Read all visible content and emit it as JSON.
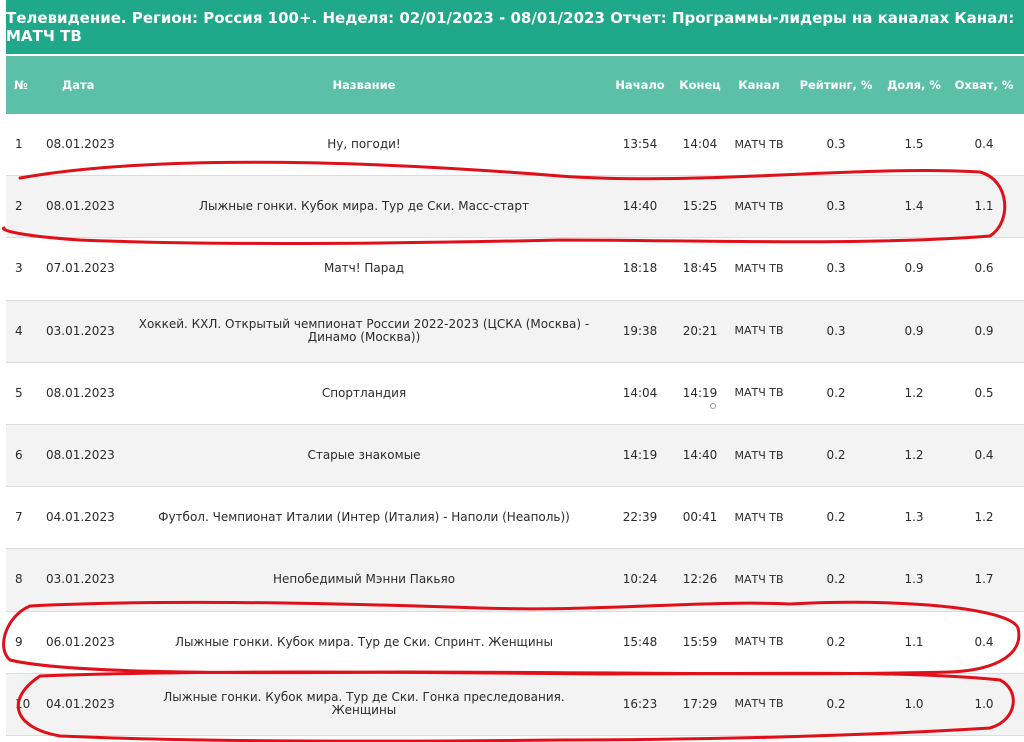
{
  "title": "Телевидение. Регион: Россия 100+. Неделя: 02/01/2023 - 08/01/2023 Отчет: Программы-лидеры на каналах Канал: МАТЧ ТВ",
  "columns": {
    "num": "№",
    "date": "Дата",
    "name": "Название",
    "start": "Начало",
    "end": "Конец",
    "channel": "Канал",
    "rating": "Рейтинг, %",
    "share": "Доля, %",
    "reach": "Охват, %"
  },
  "rows": [
    {
      "num": "1",
      "date": "08.01.2023",
      "name": "Ну, погоди!",
      "start": "13:54",
      "end": "14:04",
      "channel": "МАТЧ ТВ",
      "rating": "0.3",
      "share": "1.5",
      "reach": "0.4"
    },
    {
      "num": "2",
      "date": "08.01.2023",
      "name": "Лыжные гонки. Кубок мира. Тур де Ски. Масс-старт",
      "start": "14:40",
      "end": "15:25",
      "channel": "МАТЧ ТВ",
      "rating": "0.3",
      "share": "1.4",
      "reach": "1.1"
    },
    {
      "num": "3",
      "date": "07.01.2023",
      "name": "Матч! Парад",
      "start": "18:18",
      "end": "18:45",
      "channel": "МАТЧ ТВ",
      "rating": "0.3",
      "share": "0.9",
      "reach": "0.6"
    },
    {
      "num": "4",
      "date": "03.01.2023",
      "name": "Хоккей. КХЛ. Открытый чемпионат России 2022-2023 (ЦСКА (Москва) - Динамо (Москва))",
      "start": "19:38",
      "end": "20:21",
      "channel": "МАТЧ ТВ",
      "rating": "0.3",
      "share": "0.9",
      "reach": "0.9"
    },
    {
      "num": "5",
      "date": "08.01.2023",
      "name": "Спортландия",
      "start": "14:04",
      "end": "14:19",
      "channel": "МАТЧ ТВ",
      "rating": "0.2",
      "share": "1.2",
      "reach": "0.5"
    },
    {
      "num": "6",
      "date": "08.01.2023",
      "name": "Старые знакомые",
      "start": "14:19",
      "end": "14:40",
      "channel": "МАТЧ ТВ",
      "rating": "0.2",
      "share": "1.2",
      "reach": "0.4"
    },
    {
      "num": "7",
      "date": "04.01.2023",
      "name": "Футбол. Чемпионат Италии (Интер (Италия) - Наполи (Неаполь))",
      "start": "22:39",
      "end": "00:41",
      "channel": "МАТЧ ТВ",
      "rating": "0.2",
      "share": "1.3",
      "reach": "1.2"
    },
    {
      "num": "8",
      "date": "03.01.2023",
      "name": "Непобедимый Мэнни Пакьяо",
      "start": "10:24",
      "end": "12:26",
      "channel": "МАТЧ ТВ",
      "rating": "0.2",
      "share": "1.3",
      "reach": "1.7"
    },
    {
      "num": "9",
      "date": "06.01.2023",
      "name": "Лыжные гонки. Кубок мира. Тур де Ски. Спринт. Женщины",
      "start": "15:48",
      "end": "15:59",
      "channel": "МАТЧ ТВ",
      "rating": "0.2",
      "share": "1.1",
      "reach": "0.4"
    },
    {
      "num": "10",
      "date": "04.01.2023",
      "name": "Лыжные гонки. Кубок мира. Тур де Ски. Гонка преследования. Женщины",
      "start": "16:23",
      "end": "17:29",
      "channel": "МАТЧ ТВ",
      "rating": "0.2",
      "share": "1.0",
      "reach": "1.0"
    }
  ],
  "colors": {
    "title_bg": "#1fa88a",
    "header_bg": "#5cc0a8",
    "alt_row_bg": "#f3f3f3",
    "annotation": "#e0101a"
  }
}
